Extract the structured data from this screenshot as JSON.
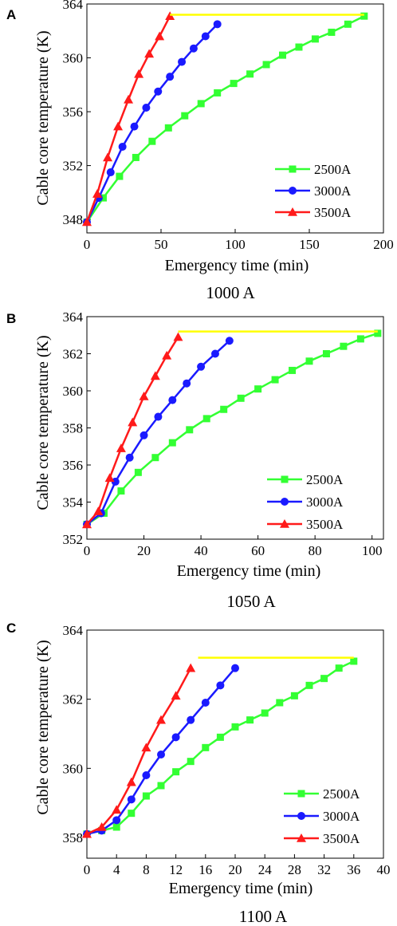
{
  "chart_data": [
    {
      "type": "line",
      "panel_label": "A",
      "caption": "1000 A",
      "xlabel": "Emergency time (min)",
      "ylabel": "Cable core temperature (K)",
      "xlim": [
        0,
        200
      ],
      "ylim": [
        347,
        364
      ],
      "xticks": [
        0,
        50,
        100,
        150,
        200
      ],
      "yticks": [
        348,
        352,
        356,
        360,
        364
      ],
      "legend_position": "bottom-right",
      "series": [
        {
          "name": "2500A",
          "color": "#33ff33",
          "marker": "square",
          "x": [
            0,
            11,
            22,
            33,
            44,
            55,
            66,
            77,
            88,
            99,
            110,
            121,
            132,
            143,
            154,
            165,
            176,
            187
          ],
          "y": [
            347.8,
            349.6,
            351.2,
            352.6,
            353.8,
            354.8,
            355.7,
            356.6,
            357.4,
            358.1,
            358.8,
            359.5,
            360.2,
            360.8,
            361.4,
            361.9,
            362.5,
            363.1
          ]
        },
        {
          "name": "3000A",
          "color": "#1a1aff",
          "marker": "circle",
          "x": [
            0,
            8,
            16,
            24,
            32,
            40,
            48,
            56,
            64,
            72,
            80,
            88
          ],
          "y": [
            347.8,
            349.6,
            351.5,
            353.4,
            354.9,
            356.3,
            357.5,
            358.6,
            359.7,
            360.7,
            361.6,
            362.5
          ]
        },
        {
          "name": "3500A",
          "color": "#ff1a1a",
          "marker": "triangle",
          "x": [
            0,
            7,
            14,
            21,
            28,
            35,
            42,
            49,
            56
          ],
          "y": [
            347.8,
            349.9,
            352.6,
            354.9,
            356.9,
            358.8,
            360.3,
            361.6,
            363.1
          ]
        },
        {
          "color": "#ffff00",
          "marker": "none",
          "x": [
            56,
            187
          ],
          "y": [
            363.2,
            363.2
          ]
        }
      ]
    },
    {
      "type": "line",
      "panel_label": "B",
      "caption": "1050 A",
      "xlabel": "Emergency time (min)",
      "ylabel": "Cable core temperature (K)",
      "xlim": [
        0,
        104
      ],
      "ylim": [
        352,
        364
      ],
      "xticks": [
        0,
        20,
        40,
        60,
        80,
        100
      ],
      "yticks": [
        352,
        354,
        356,
        358,
        360,
        362,
        364
      ],
      "legend_position": "bottom-right",
      "series": [
        {
          "name": "2500A",
          "color": "#33ff33",
          "marker": "square",
          "x": [
            0,
            6,
            12,
            18,
            24,
            30,
            36,
            42,
            48,
            54,
            60,
            66,
            72,
            78,
            84,
            90,
            96,
            102
          ],
          "y": [
            352.8,
            353.4,
            354.6,
            355.6,
            356.4,
            357.2,
            357.9,
            358.5,
            359.0,
            359.6,
            360.1,
            360.6,
            361.1,
            361.6,
            362.0,
            362.4,
            362.8,
            363.1
          ]
        },
        {
          "name": "3000A",
          "color": "#1a1aff",
          "marker": "circle",
          "x": [
            0,
            5,
            10,
            15,
            20,
            25,
            30,
            35,
            40,
            45,
            50
          ],
          "y": [
            352.8,
            353.4,
            355.1,
            356.4,
            357.6,
            358.6,
            359.5,
            360.4,
            361.3,
            362.0,
            362.7
          ]
        },
        {
          "name": "3500A",
          "color": "#ff1a1a",
          "marker": "triangle",
          "x": [
            0,
            4,
            8,
            12,
            16,
            20,
            24,
            28,
            32
          ],
          "y": [
            352.8,
            353.5,
            355.3,
            356.9,
            358.3,
            359.7,
            360.8,
            361.9,
            362.9
          ]
        },
        {
          "color": "#ffff00",
          "marker": "none",
          "x": [
            32,
            102
          ],
          "y": [
            363.2,
            363.2
          ]
        }
      ]
    },
    {
      "type": "line",
      "panel_label": "C",
      "caption": "1100 A",
      "xlabel": "Emergency time (min)",
      "ylabel": "Cable core temperature (K)",
      "xlim": [
        0,
        40
      ],
      "ylim": [
        357.4,
        364
      ],
      "xticks": [
        0,
        4,
        8,
        12,
        16,
        20,
        24,
        28,
        32,
        36,
        40
      ],
      "yticks": [
        358,
        360,
        362,
        364
      ],
      "legend_position": "bottom-right",
      "series": [
        {
          "name": "2500A",
          "color": "#33ff33",
          "marker": "square",
          "x": [
            0,
            2,
            4,
            6,
            8,
            10,
            12,
            14,
            16,
            18,
            20,
            22,
            24,
            26,
            28,
            30,
            32,
            34,
            36
          ],
          "y": [
            358.1,
            358.2,
            358.3,
            358.7,
            359.2,
            359.5,
            359.9,
            360.2,
            360.6,
            360.9,
            361.2,
            361.4,
            361.6,
            361.9,
            362.1,
            362.4,
            362.6,
            362.9,
            363.1
          ]
        },
        {
          "name": "3000A",
          "color": "#1a1aff",
          "marker": "circle",
          "x": [
            0,
            2,
            4,
            6,
            8,
            10,
            12,
            14,
            16,
            18,
            20
          ],
          "y": [
            358.1,
            358.2,
            358.5,
            359.1,
            359.8,
            360.4,
            360.9,
            361.4,
            361.9,
            362.4,
            362.9
          ]
        },
        {
          "name": "3500A",
          "color": "#ff1a1a",
          "marker": "triangle",
          "x": [
            0,
            2,
            4,
            6,
            8,
            10,
            12,
            14
          ],
          "y": [
            358.1,
            358.3,
            358.8,
            359.6,
            360.6,
            361.4,
            362.1,
            362.9
          ]
        },
        {
          "color": "#ffff00",
          "marker": "none",
          "x": [
            15,
            36
          ],
          "y": [
            363.2,
            363.2
          ]
        }
      ]
    }
  ]
}
